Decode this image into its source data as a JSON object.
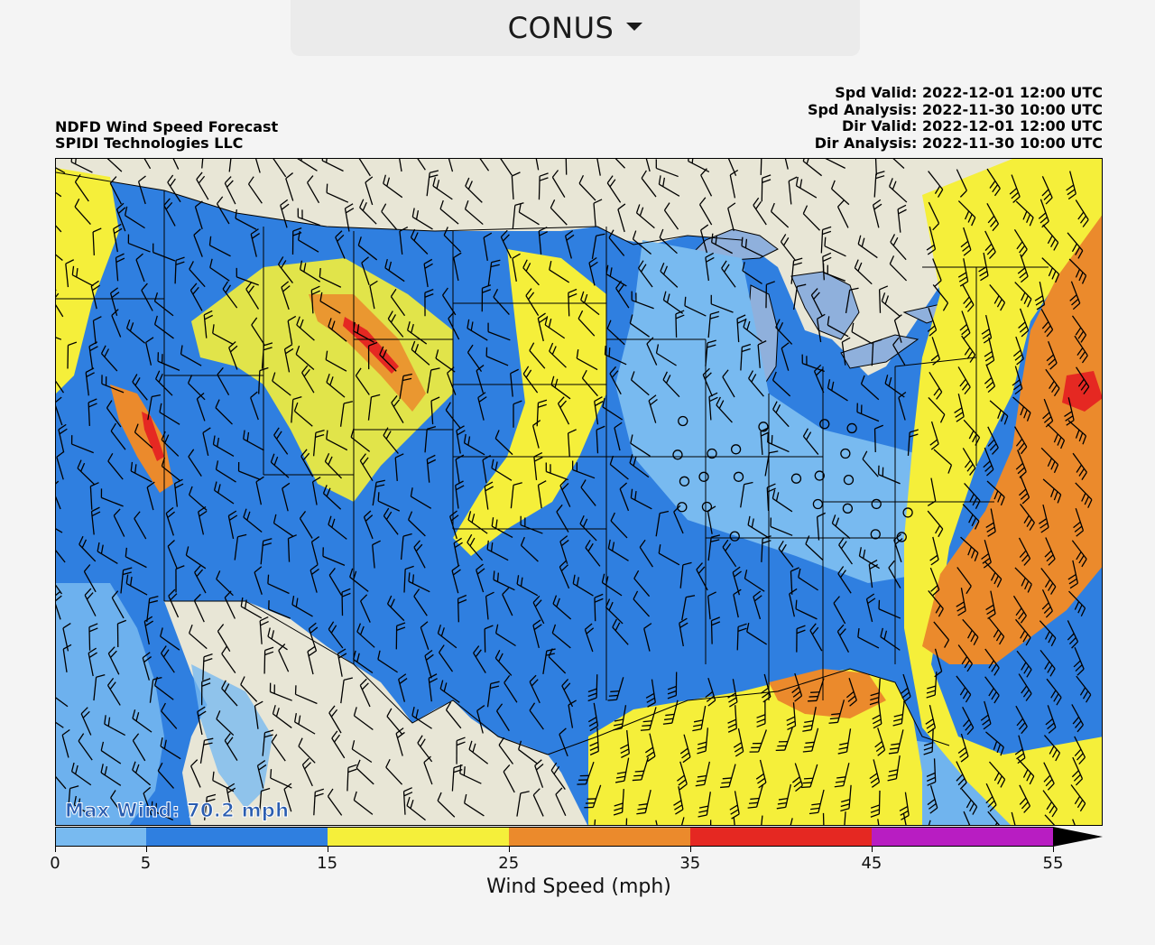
{
  "region_selector": {
    "label": "CONUS",
    "icon": "caret-down-icon"
  },
  "title": {
    "line1": "NDFD Wind Speed Forecast",
    "line2": "SPIDI Technologies LLC"
  },
  "meta": [
    {
      "key": "Spd Valid:",
      "value": "2022-12-01 12:00 UTC"
    },
    {
      "key": "Spd Analysis:",
      "value": "2022-11-30 10:00 UTC"
    },
    {
      "key": "Dir Valid:",
      "value": "2022-12-01 12:00 UTC"
    },
    {
      "key": "Dir Analysis:",
      "value": "2022-11-30 10:00 UTC"
    }
  ],
  "max_wind": "Max Wind: 70.2 mph",
  "colorbar": {
    "label": "Wind Speed (mph)",
    "ticks": [
      "0",
      "5",
      "15",
      "25",
      "35",
      "45",
      "55"
    ],
    "bins": [
      {
        "from": 0,
        "to": 5,
        "color": "#78baf0"
      },
      {
        "from": 5,
        "to": 15,
        "color": "#2f7fe0"
      },
      {
        "from": 15,
        "to": 25,
        "color": "#f5ef3a"
      },
      {
        "from": 25,
        "to": 35,
        "color": "#eb8a2c"
      },
      {
        "from": 35,
        "to": 45,
        "color": "#e52822"
      },
      {
        "from": 45,
        "to": 55,
        "color": "#b81dc2"
      }
    ],
    "overflow_color": "#000000"
  },
  "colors": {
    "land_foreign": "#e8e6d6",
    "water_lakes": "#8fb0dc",
    "borders": "#000000"
  }
}
